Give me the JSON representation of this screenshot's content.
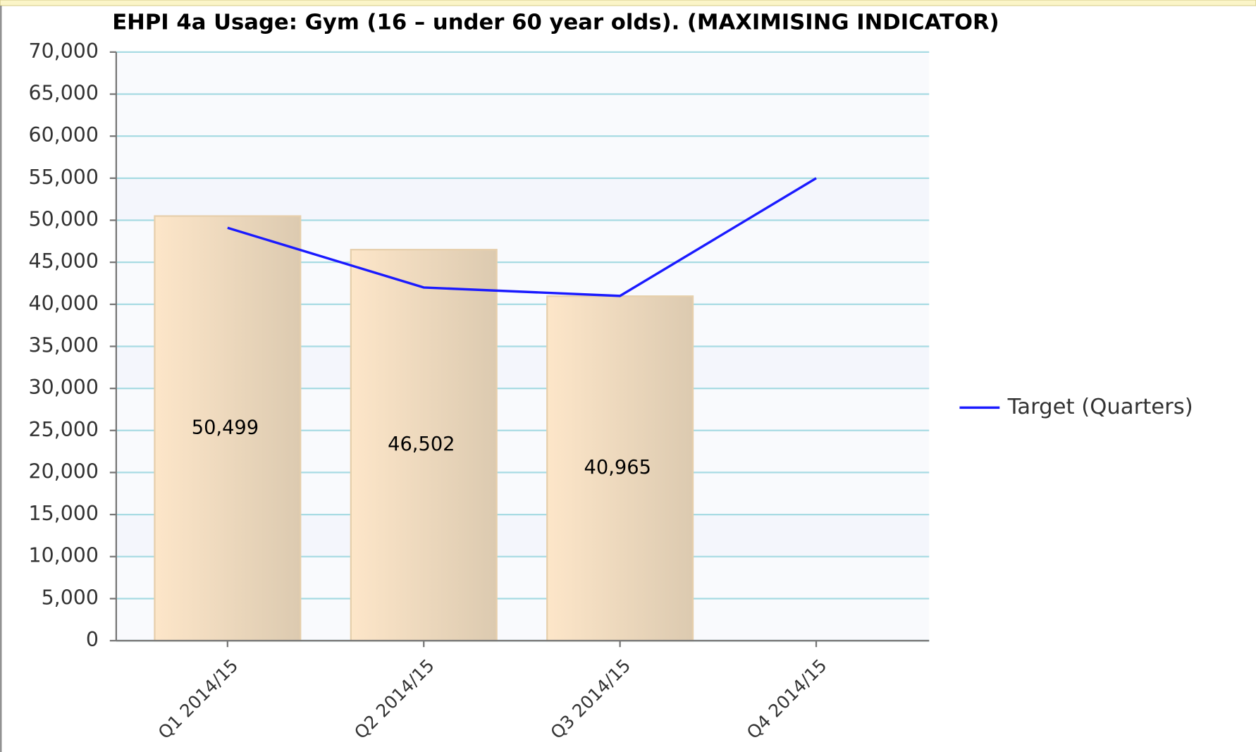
{
  "chart_data": {
    "type": "bar-line",
    "title": "EHPI 4a Usage: Gym (16 – under 60 year olds). (MAXIMISING INDICATOR)",
    "categories": [
      "Q1 2014/15",
      "Q2 2014/15",
      "Q3 2014/15",
      "Q4 2014/15"
    ],
    "series": [
      {
        "type": "bar",
        "color": "#f2dcbd",
        "values": [
          50499,
          46502,
          40965,
          null
        ],
        "value_labels": [
          "50,499",
          "46,502",
          "40,965",
          null
        ]
      },
      {
        "type": "line",
        "name": "Target (Quarters)",
        "color": "#1a1aff",
        "values": [
          49100,
          42000,
          41000,
          55000
        ]
      }
    ],
    "ylim": [
      0,
      70000
    ],
    "yticks": [
      0,
      {
        "value": 5000,
        "label": "5,000"
      },
      {
        "value": 10000,
        "label": "10,000"
      },
      {
        "value": 15000,
        "label": "15,000"
      },
      {
        "value": 20000,
        "label": "20,000"
      },
      {
        "value": 25000,
        "label": "25,000"
      },
      {
        "value": 30000,
        "label": "30,000"
      },
      {
        "value": 35000,
        "label": "35,000"
      },
      {
        "value": 40000,
        "label": "40,000"
      },
      {
        "value": 45000,
        "label": "45,000"
      },
      {
        "value": 50000,
        "label": "50,000"
      },
      {
        "value": 55000,
        "label": "55,000"
      },
      {
        "value": 60000,
        "label": "60,000"
      },
      {
        "value": 65000,
        "label": "65,000"
      },
      {
        "value": 70000,
        "label": "70,000"
      }
    ],
    "grid": true,
    "legend": "right"
  }
}
